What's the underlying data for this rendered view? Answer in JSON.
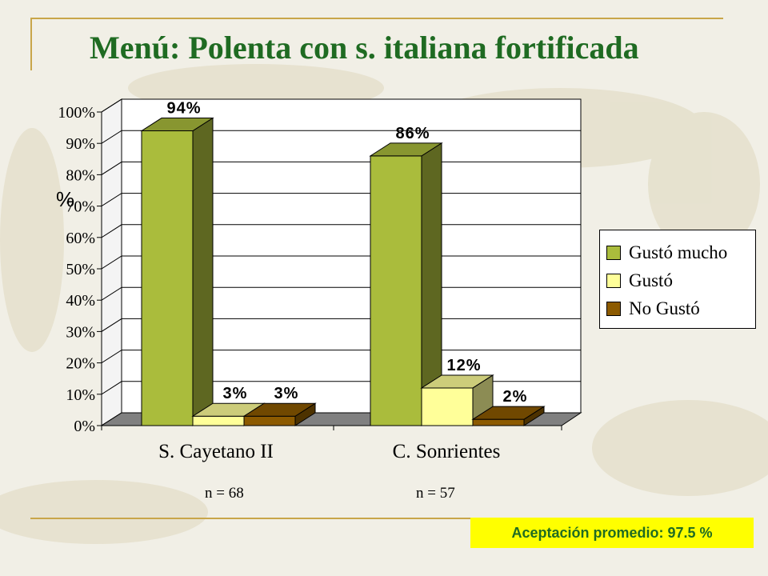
{
  "slide": {
    "title": "Menú: Polenta con s. italiana fortificada",
    "acceptance": "Aceptación promedio: 97.5 %"
  },
  "chart_data": {
    "type": "bar",
    "style": "3d-clustered",
    "categories": [
      "S. Cayetano II",
      "C. Sonrientes"
    ],
    "category_notes": [
      "n = 68",
      "n = 57"
    ],
    "series": [
      {
        "name": "Gustó mucho",
        "values": [
          94,
          86
        ],
        "labels": [
          "94%",
          "86%"
        ],
        "color": "#aabc3c"
      },
      {
        "name": "Gustó",
        "values": [
          3,
          12
        ],
        "labels": [
          "3%",
          "12%"
        ],
        "color": "#ffff99"
      },
      {
        "name": "No Gustó",
        "values": [
          3,
          2
        ],
        "labels": [
          "3%",
          "2%"
        ],
        "color": "#8c5a00"
      }
    ],
    "ylabel": "%",
    "ylim": [
      0,
      100
    ],
    "yticks": [
      "0%",
      "10%",
      "20%",
      "30%",
      "40%",
      "50%",
      "60%",
      "70%",
      "80%",
      "90%",
      "100%"
    ],
    "grid": true,
    "legend": "right"
  }
}
